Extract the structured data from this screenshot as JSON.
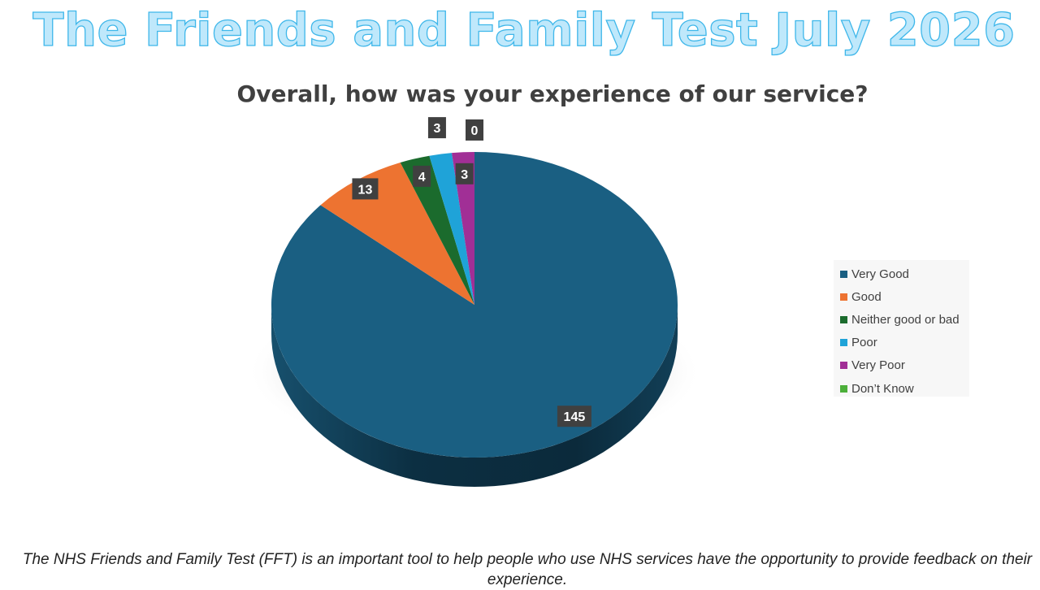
{
  "page": {
    "title": "The Friends and Family Test July 2026",
    "footer_note": "The NHS Friends and Family Test (FFT) is an important tool to help people who use NHS services have the opportunity to provide feedback on their experience."
  },
  "chart_data": {
    "type": "pie",
    "style": "3d",
    "title": "Overall, how was your experience of our service?",
    "categories": [
      "Very Good",
      "Good",
      "Neither good or bad",
      "Poor",
      "Very Poor",
      "Don’t Know"
    ],
    "values": [
      145,
      13,
      4,
      3,
      3,
      0
    ],
    "colors": [
      "#1a5f82",
      "#ed7331",
      "#1b6b2d",
      "#1fa3d8",
      "#a12f96",
      "#4caf3a"
    ],
    "legend": {
      "position": "right",
      "items": [
        {
          "label": "Very Good",
          "color": "#1a5f82"
        },
        {
          "label": "Good",
          "color": "#ed7331"
        },
        {
          "label": "Neither good or bad",
          "color": "#1b6b2d"
        },
        {
          "label": "Poor",
          "color": "#1fa3d8"
        },
        {
          "label": "Very Poor",
          "color": "#a12f96"
        },
        {
          "label": "Don’t Know",
          "color": "#4caf3a"
        }
      ]
    }
  }
}
